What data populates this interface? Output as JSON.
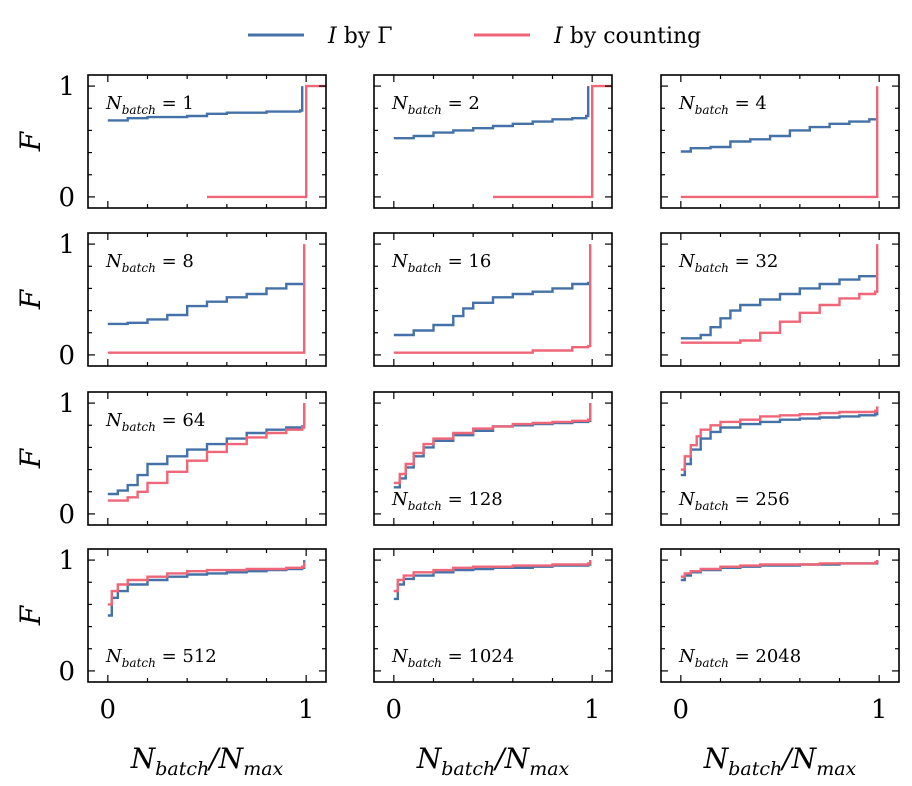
{
  "legend": [
    {
      "symbol": "I",
      "text": "by Γ",
      "color": "#4472a8"
    },
    {
      "symbol": "I",
      "text": "by counting",
      "color": "#ee6677"
    }
  ],
  "axis_text": {
    "ylabel": "F",
    "xlabel_main": "N",
    "xlabel_sub1": "batch",
    "xlabel_mid": "/N",
    "xlabel_sub2": "max",
    "ytick_labels": [
      "0",
      "1"
    ],
    "xtick_labels": [
      "0",
      "1"
    ]
  },
  "chart_data": {
    "type": "line",
    "layout": "4x3 grid of step plots",
    "xlabel": "Nbatch/Nmax",
    "ylabel": "F",
    "xlim": [
      -0.1,
      1.1
    ],
    "ylim": [
      -0.1,
      1.1
    ],
    "legend_position": "top-center",
    "series_names": [
      "I by Γ",
      "I by counting"
    ],
    "series_colors": [
      "#4472a8",
      "#ee6677"
    ],
    "panels": [
      {
        "label_n": "1",
        "blue": [
          [
            0,
            0.69
          ],
          [
            0.1,
            0.71
          ],
          [
            0.2,
            0.72
          ],
          [
            0.4,
            0.73
          ],
          [
            0.5,
            0.75
          ],
          [
            0.6,
            0.76
          ],
          [
            0.8,
            0.77
          ],
          [
            0.97,
            0.78
          ],
          [
            0.98,
            1.0
          ]
        ],
        "red": [
          [
            0.5,
            0.0
          ],
          [
            0.98,
            0.0
          ],
          [
            1.0,
            1.0
          ],
          [
            1.1,
            1.0
          ]
        ]
      },
      {
        "label_n": "2",
        "blue": [
          [
            0,
            0.53
          ],
          [
            0.1,
            0.55
          ],
          [
            0.2,
            0.58
          ],
          [
            0.3,
            0.6
          ],
          [
            0.4,
            0.62
          ],
          [
            0.5,
            0.64
          ],
          [
            0.6,
            0.66
          ],
          [
            0.7,
            0.68
          ],
          [
            0.8,
            0.7
          ],
          [
            0.9,
            0.71
          ],
          [
            0.97,
            0.73
          ],
          [
            0.98,
            1.0
          ]
        ],
        "red": [
          [
            0.5,
            0.0
          ],
          [
            0.98,
            0.0
          ],
          [
            1.0,
            1.0
          ],
          [
            1.1,
            1.0
          ]
        ]
      },
      {
        "label_n": "4",
        "blue": [
          [
            0,
            0.41
          ],
          [
            0.05,
            0.44
          ],
          [
            0.15,
            0.45
          ],
          [
            0.25,
            0.5
          ],
          [
            0.35,
            0.52
          ],
          [
            0.45,
            0.55
          ],
          [
            0.55,
            0.6
          ],
          [
            0.65,
            0.63
          ],
          [
            0.75,
            0.66
          ],
          [
            0.85,
            0.68
          ],
          [
            0.95,
            0.7
          ],
          [
            0.98,
            0.71
          ]
        ],
        "red": [
          [
            0,
            0.0
          ],
          [
            0.98,
            0.0
          ],
          [
            0.99,
            1.0
          ]
        ]
      },
      {
        "label_n": "8",
        "blue": [
          [
            0,
            0.28
          ],
          [
            0.1,
            0.29
          ],
          [
            0.2,
            0.32
          ],
          [
            0.3,
            0.36
          ],
          [
            0.4,
            0.44
          ],
          [
            0.5,
            0.48
          ],
          [
            0.6,
            0.52
          ],
          [
            0.7,
            0.55
          ],
          [
            0.8,
            0.6
          ],
          [
            0.9,
            0.64
          ],
          [
            0.98,
            0.65
          ]
        ],
        "red": [
          [
            0,
            0.02
          ],
          [
            0.98,
            0.02
          ],
          [
            0.99,
            1.0
          ]
        ]
      },
      {
        "label_n": "16",
        "blue": [
          [
            0,
            0.18
          ],
          [
            0.1,
            0.22
          ],
          [
            0.2,
            0.27
          ],
          [
            0.3,
            0.35
          ],
          [
            0.35,
            0.42
          ],
          [
            0.4,
            0.47
          ],
          [
            0.5,
            0.52
          ],
          [
            0.6,
            0.55
          ],
          [
            0.7,
            0.57
          ],
          [
            0.8,
            0.6
          ],
          [
            0.9,
            0.64
          ],
          [
            0.98,
            0.66
          ]
        ],
        "red": [
          [
            0,
            0.02
          ],
          [
            0.5,
            0.02
          ],
          [
            0.7,
            0.04
          ],
          [
            0.9,
            0.07
          ],
          [
            0.98,
            0.08
          ],
          [
            0.99,
            1.0
          ]
        ]
      },
      {
        "label_n": "32",
        "blue": [
          [
            0,
            0.15
          ],
          [
            0.1,
            0.18
          ],
          [
            0.15,
            0.25
          ],
          [
            0.2,
            0.33
          ],
          [
            0.25,
            0.4
          ],
          [
            0.3,
            0.45
          ],
          [
            0.4,
            0.5
          ],
          [
            0.5,
            0.55
          ],
          [
            0.6,
            0.6
          ],
          [
            0.7,
            0.64
          ],
          [
            0.8,
            0.68
          ],
          [
            0.9,
            0.71
          ],
          [
            0.98,
            0.72
          ]
        ],
        "red": [
          [
            0,
            0.11
          ],
          [
            0.2,
            0.11
          ],
          [
            0.3,
            0.13
          ],
          [
            0.4,
            0.2
          ],
          [
            0.5,
            0.3
          ],
          [
            0.6,
            0.38
          ],
          [
            0.7,
            0.45
          ],
          [
            0.8,
            0.51
          ],
          [
            0.9,
            0.55
          ],
          [
            0.98,
            0.57
          ],
          [
            0.99,
            1.0
          ]
        ]
      },
      {
        "label_n": "64",
        "blue": [
          [
            0,
            0.18
          ],
          [
            0.05,
            0.21
          ],
          [
            0.1,
            0.26
          ],
          [
            0.15,
            0.35
          ],
          [
            0.2,
            0.45
          ],
          [
            0.3,
            0.52
          ],
          [
            0.4,
            0.58
          ],
          [
            0.5,
            0.63
          ],
          [
            0.6,
            0.68
          ],
          [
            0.7,
            0.73
          ],
          [
            0.8,
            0.76
          ],
          [
            0.9,
            0.78
          ],
          [
            0.98,
            0.79
          ],
          [
            0.99,
            1.0
          ]
        ],
        "red": [
          [
            0,
            0.12
          ],
          [
            0.1,
            0.15
          ],
          [
            0.15,
            0.2
          ],
          [
            0.2,
            0.28
          ],
          [
            0.3,
            0.38
          ],
          [
            0.4,
            0.48
          ],
          [
            0.5,
            0.56
          ],
          [
            0.6,
            0.63
          ],
          [
            0.7,
            0.69
          ],
          [
            0.8,
            0.73
          ],
          [
            0.9,
            0.76
          ],
          [
            0.98,
            0.78
          ],
          [
            0.99,
            1.0
          ]
        ]
      },
      {
        "label_n": "128",
        "blue": [
          [
            0,
            0.24
          ],
          [
            0.03,
            0.32
          ],
          [
            0.06,
            0.42
          ],
          [
            0.1,
            0.52
          ],
          [
            0.15,
            0.6
          ],
          [
            0.2,
            0.66
          ],
          [
            0.3,
            0.71
          ],
          [
            0.4,
            0.75
          ],
          [
            0.5,
            0.79
          ],
          [
            0.6,
            0.8
          ],
          [
            0.7,
            0.81
          ],
          [
            0.8,
            0.82
          ],
          [
            0.9,
            0.83
          ],
          [
            0.98,
            0.84
          ],
          [
            0.99,
            1.0
          ]
        ],
        "red": [
          [
            0,
            0.28
          ],
          [
            0.03,
            0.36
          ],
          [
            0.06,
            0.45
          ],
          [
            0.1,
            0.55
          ],
          [
            0.15,
            0.63
          ],
          [
            0.2,
            0.68
          ],
          [
            0.3,
            0.73
          ],
          [
            0.4,
            0.77
          ],
          [
            0.5,
            0.79
          ],
          [
            0.6,
            0.81
          ],
          [
            0.7,
            0.82
          ],
          [
            0.8,
            0.83
          ],
          [
            0.9,
            0.84
          ],
          [
            0.98,
            0.85
          ],
          [
            0.99,
            1.0
          ]
        ]
      },
      {
        "label_n": "256",
        "blue": [
          [
            0,
            0.35
          ],
          [
            0.02,
            0.45
          ],
          [
            0.05,
            0.58
          ],
          [
            0.1,
            0.68
          ],
          [
            0.15,
            0.74
          ],
          [
            0.2,
            0.78
          ],
          [
            0.3,
            0.81
          ],
          [
            0.4,
            0.83
          ],
          [
            0.5,
            0.85
          ],
          [
            0.6,
            0.86
          ],
          [
            0.7,
            0.87
          ],
          [
            0.8,
            0.88
          ],
          [
            0.9,
            0.89
          ],
          [
            0.98,
            0.9
          ],
          [
            0.99,
            0.96
          ]
        ],
        "red": [
          [
            0,
            0.4
          ],
          [
            0.02,
            0.52
          ],
          [
            0.05,
            0.62
          ],
          [
            0.08,
            0.7
          ],
          [
            0.1,
            0.76
          ],
          [
            0.15,
            0.8
          ],
          [
            0.2,
            0.83
          ],
          [
            0.3,
            0.85
          ],
          [
            0.4,
            0.88
          ],
          [
            0.5,
            0.89
          ],
          [
            0.6,
            0.9
          ],
          [
            0.7,
            0.91
          ],
          [
            0.8,
            0.92
          ],
          [
            0.9,
            0.92
          ],
          [
            0.98,
            0.93
          ],
          [
            0.99,
            0.97
          ]
        ]
      },
      {
        "label_n": "512",
        "blue": [
          [
            0,
            0.5
          ],
          [
            0.02,
            0.66
          ],
          [
            0.05,
            0.72
          ],
          [
            0.1,
            0.78
          ],
          [
            0.2,
            0.82
          ],
          [
            0.3,
            0.85
          ],
          [
            0.4,
            0.87
          ],
          [
            0.5,
            0.88
          ],
          [
            0.6,
            0.89
          ],
          [
            0.7,
            0.9
          ],
          [
            0.8,
            0.91
          ],
          [
            0.9,
            0.92
          ],
          [
            0.98,
            0.93
          ],
          [
            0.99,
            1.0
          ]
        ],
        "red": [
          [
            0,
            0.6
          ],
          [
            0.02,
            0.72
          ],
          [
            0.05,
            0.78
          ],
          [
            0.1,
            0.82
          ],
          [
            0.2,
            0.85
          ],
          [
            0.3,
            0.88
          ],
          [
            0.4,
            0.9
          ],
          [
            0.5,
            0.91
          ],
          [
            0.6,
            0.91
          ],
          [
            0.7,
            0.92
          ],
          [
            0.8,
            0.92
          ],
          [
            0.9,
            0.93
          ],
          [
            0.98,
            0.94
          ],
          [
            0.99,
            0.98
          ]
        ]
      },
      {
        "label_n": "1024",
        "blue": [
          [
            0,
            0.65
          ],
          [
            0.02,
            0.78
          ],
          [
            0.05,
            0.83
          ],
          [
            0.1,
            0.86
          ],
          [
            0.2,
            0.89
          ],
          [
            0.3,
            0.91
          ],
          [
            0.4,
            0.92
          ],
          [
            0.5,
            0.93
          ],
          [
            0.6,
            0.93
          ],
          [
            0.7,
            0.94
          ],
          [
            0.8,
            0.95
          ],
          [
            0.9,
            0.95
          ],
          [
            0.98,
            0.96
          ],
          [
            0.99,
            1.0
          ]
        ],
        "red": [
          [
            0,
            0.72
          ],
          [
            0.02,
            0.82
          ],
          [
            0.05,
            0.86
          ],
          [
            0.1,
            0.89
          ],
          [
            0.2,
            0.91
          ],
          [
            0.3,
            0.93
          ],
          [
            0.4,
            0.94
          ],
          [
            0.5,
            0.94
          ],
          [
            0.6,
            0.95
          ],
          [
            0.7,
            0.95
          ],
          [
            0.8,
            0.96
          ],
          [
            0.9,
            0.96
          ],
          [
            0.98,
            0.97
          ],
          [
            0.99,
            1.0
          ]
        ]
      },
      {
        "label_n": "2048",
        "blue": [
          [
            0,
            0.82
          ],
          [
            0.02,
            0.86
          ],
          [
            0.05,
            0.89
          ],
          [
            0.1,
            0.91
          ],
          [
            0.2,
            0.93
          ],
          [
            0.3,
            0.94
          ],
          [
            0.4,
            0.95
          ],
          [
            0.5,
            0.95
          ],
          [
            0.6,
            0.96
          ],
          [
            0.7,
            0.96
          ],
          [
            0.8,
            0.97
          ],
          [
            0.9,
            0.97
          ],
          [
            0.98,
            0.97
          ],
          [
            0.99,
            1.0
          ]
        ],
        "red": [
          [
            0,
            0.85
          ],
          [
            0.02,
            0.88
          ],
          [
            0.05,
            0.9
          ],
          [
            0.1,
            0.92
          ],
          [
            0.2,
            0.94
          ],
          [
            0.3,
            0.95
          ],
          [
            0.4,
            0.96
          ],
          [
            0.5,
            0.96
          ],
          [
            0.6,
            0.96
          ],
          [
            0.7,
            0.97
          ],
          [
            0.8,
            0.97
          ],
          [
            0.9,
            0.97
          ],
          [
            0.98,
            0.98
          ],
          [
            0.99,
            1.0
          ]
        ]
      }
    ]
  }
}
